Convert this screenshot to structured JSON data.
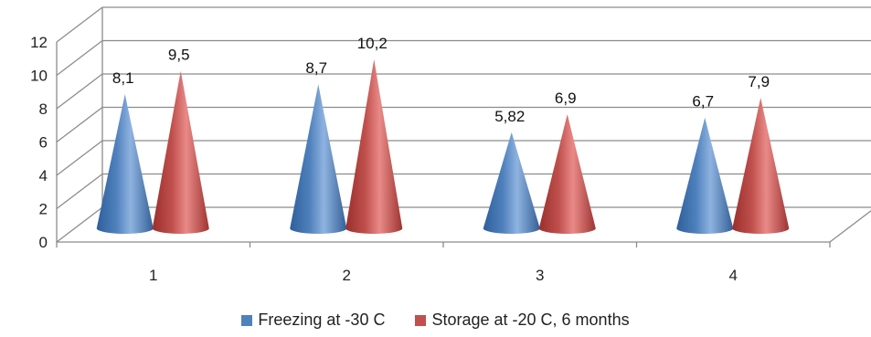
{
  "chart_data": {
    "type": "bar",
    "shape": "cone-3d",
    "categories": [
      "1",
      "2",
      "3",
      "4"
    ],
    "series": [
      {
        "name": "Freezing at -30 C",
        "values": [
          8.1,
          8.7,
          5.82,
          6.7
        ],
        "labels": [
          "8,1",
          "8,7",
          "5,82",
          "6,7"
        ],
        "color": "#4f81bd"
      },
      {
        "name": "Storage at -20 C, 6 months",
        "values": [
          9.5,
          10.2,
          6.9,
          7.9
        ],
        "labels": [
          "9,5",
          "10,2",
          "6,9",
          "7,9"
        ],
        "color": "#c0504d"
      }
    ],
    "y_ticks": [
      "0",
      "2",
      "4",
      "6",
      "8",
      "10",
      "12"
    ],
    "ylim": [
      0,
      12
    ],
    "grid": true,
    "legend_position": "bottom"
  }
}
